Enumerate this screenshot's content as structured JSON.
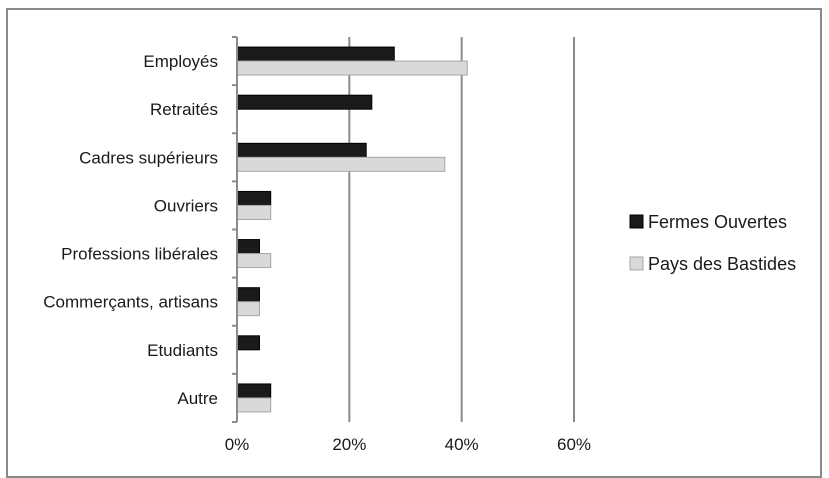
{
  "chart_data": {
    "type": "bar",
    "orientation": "horizontal",
    "categories": [
      "Employés",
      "Retraités",
      "Cadres supérieurs",
      "Ouvriers",
      "Professions libérales",
      "Commerçants, artisans",
      "Etudiants",
      "Autre"
    ],
    "series": [
      {
        "name": "Fermes Ouvertes",
        "color": "#1a1a1a",
        "values": [
          28,
          24,
          23,
          6,
          4,
          4,
          4,
          6
        ]
      },
      {
        "name": "Pays des Bastides",
        "color": "#d9d9d9",
        "values": [
          41,
          0,
          37,
          6,
          6,
          4,
          0,
          6
        ]
      }
    ],
    "xlim": [
      0,
      60
    ],
    "xticks": [
      "0%",
      "20%",
      "40%",
      "60%"
    ],
    "grid": true,
    "legend_position": "right"
  }
}
